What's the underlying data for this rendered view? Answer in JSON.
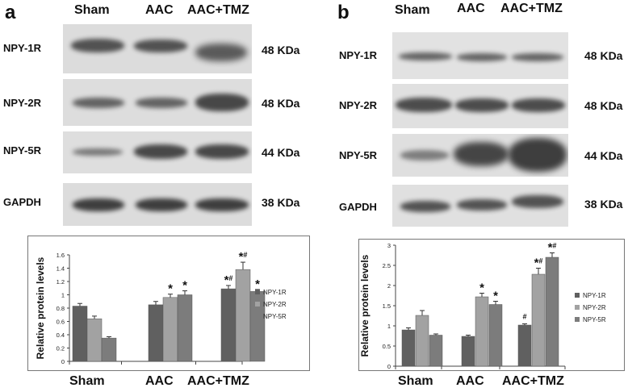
{
  "panels": {
    "a": {
      "letter": "a",
      "lanes": [
        "Sham",
        "AAC",
        "AAC+TMZ"
      ],
      "blots": [
        {
          "label": "NPY-1R",
          "kda": "48 KDa"
        },
        {
          "label": "NPY-2R",
          "kda": "48 KDa"
        },
        {
          "label": "NPY-5R",
          "kda": "44 KDa"
        },
        {
          "label": "GAPDH",
          "kda": "38 KDa"
        }
      ]
    },
    "b": {
      "letter": "b",
      "lanes": [
        "Sham",
        "AAC",
        "AAC+TMZ"
      ],
      "blots": [
        {
          "label": "NPY-1R",
          "kda": "48 KDa"
        },
        {
          "label": "NPY-2R",
          "kda": "48 KDa"
        },
        {
          "label": "NPY-5R",
          "kda": "44 KDa"
        },
        {
          "label": "GAPDH",
          "kda": "38 KDa"
        }
      ]
    }
  },
  "chart_data": [
    {
      "type": "bar",
      "ylabel": "Relative protein levels",
      "categories": [
        "Sham",
        "AAC",
        "AAC+TMZ"
      ],
      "ylim": [
        0,
        1.6
      ],
      "yticks": [
        "0",
        "0.2",
        "0.4",
        "0.6",
        "0.8",
        "1",
        "1.2",
        "1.4",
        "1.6"
      ],
      "legend_position": "right",
      "series": [
        {
          "name": "NPY-1R",
          "color": "#606060",
          "values": [
            0.83,
            0.85,
            1.09
          ],
          "errors": [
            0.04,
            0.05,
            0.05
          ]
        },
        {
          "name": "NPY-2R",
          "color": "#a2a2a2",
          "values": [
            0.64,
            0.96,
            1.38
          ],
          "errors": [
            0.04,
            0.05,
            0.11
          ]
        },
        {
          "name": "NPY-5R",
          "color": "#7c7c7c",
          "values": [
            0.35,
            1.0,
            1.05
          ],
          "errors": [
            0.02,
            0.06,
            0.03
          ]
        }
      ],
      "annotations": [
        {
          "category": 1,
          "series": 1,
          "text": "*"
        },
        {
          "category": 1,
          "series": 2,
          "text": "*"
        },
        {
          "category": 2,
          "series": 0,
          "text": "*#"
        },
        {
          "category": 2,
          "series": 1,
          "text": "*#"
        },
        {
          "category": 2,
          "series": 2,
          "text": "*"
        }
      ],
      "grid": false
    },
    {
      "type": "bar",
      "ylabel": "Relative protein levels",
      "categories": [
        "Sham",
        "AAC",
        "AAC+TMZ"
      ],
      "ylim": [
        0,
        3
      ],
      "yticks": [
        "0",
        "0.5",
        "1",
        "1.5",
        "2",
        "2.5",
        "3"
      ],
      "legend_position": "right",
      "series": [
        {
          "name": "NPY-1R",
          "color": "#606060",
          "values": [
            0.9,
            0.74,
            1.02
          ],
          "errors": [
            0.05,
            0.03,
            0.03
          ]
        },
        {
          "name": "NPY-2R",
          "color": "#a2a2a2",
          "values": [
            1.26,
            1.72,
            2.28
          ],
          "errors": [
            0.12,
            0.09,
            0.15
          ]
        },
        {
          "name": "NPY-5R",
          "color": "#7c7c7c",
          "values": [
            0.77,
            1.53,
            2.7
          ],
          "errors": [
            0.03,
            0.08,
            0.11
          ]
        }
      ],
      "annotations": [
        {
          "category": 1,
          "series": 1,
          "text": "*"
        },
        {
          "category": 1,
          "series": 2,
          "text": "*"
        },
        {
          "category": 2,
          "series": 0,
          "text": "#"
        },
        {
          "category": 2,
          "series": 1,
          "text": "*#"
        },
        {
          "category": 2,
          "series": 2,
          "text": "*#"
        }
      ],
      "grid": false
    }
  ]
}
